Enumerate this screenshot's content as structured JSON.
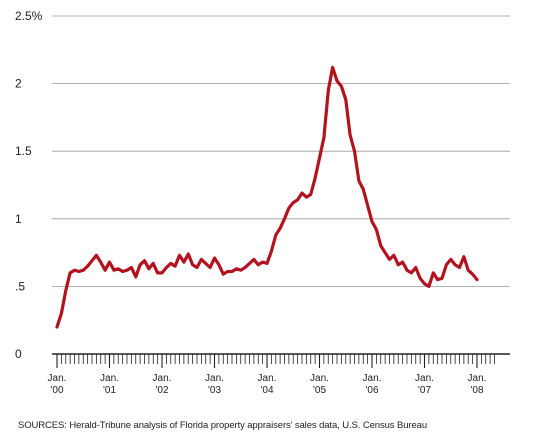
{
  "chart_data": {
    "type": "line",
    "title": "",
    "xlabel": "",
    "ylabel": "",
    "ylim": [
      0,
      2.5
    ],
    "yticks": [
      {
        "value": 0,
        "label": "0"
      },
      {
        "value": 0.5,
        "label": ".5"
      },
      {
        "value": 1,
        "label": "1"
      },
      {
        "value": 1.5,
        "label": "1.5"
      },
      {
        "value": 2,
        "label": "2"
      },
      {
        "value": 2.5,
        "label": "2.5%"
      }
    ],
    "xticks": [
      {
        "value": 2000,
        "line1": "Jan.",
        "line2": "'00"
      },
      {
        "value": 2001,
        "line1": "Jan.",
        "line2": "'01"
      },
      {
        "value": 2002,
        "line1": "Jan.",
        "line2": "'02"
      },
      {
        "value": 2003,
        "line1": "Jan.",
        "line2": "'03"
      },
      {
        "value": 2004,
        "line1": "Jan.",
        "line2": "'04"
      },
      {
        "value": 2005,
        "line1": "Jan.",
        "line2": "'05"
      },
      {
        "value": 2006,
        "line1": "Jan.",
        "line2": "'06"
      },
      {
        "value": 2007,
        "line1": "Jan.",
        "line2": "'07"
      },
      {
        "value": 2008,
        "line1": "Jan.",
        "line2": "'08"
      }
    ],
    "grid": "horizontal",
    "series": [
      {
        "color": "#b3121f",
        "start": "Jan. 2000",
        "frequency": "monthly",
        "values": [
          0.2,
          0.3,
          0.47,
          0.6,
          0.62,
          0.61,
          0.62,
          0.65,
          0.69,
          0.73,
          0.68,
          0.62,
          0.68,
          0.62,
          0.63,
          0.61,
          0.62,
          0.64,
          0.57,
          0.66,
          0.69,
          0.63,
          0.67,
          0.6,
          0.6,
          0.64,
          0.67,
          0.65,
          0.73,
          0.68,
          0.74,
          0.66,
          0.64,
          0.7,
          0.67,
          0.64,
          0.71,
          0.66,
          0.59,
          0.61,
          0.61,
          0.63,
          0.62,
          0.64,
          0.67,
          0.7,
          0.66,
          0.68,
          0.67,
          0.76,
          0.88,
          0.93,
          1.0,
          1.08,
          1.12,
          1.14,
          1.19,
          1.16,
          1.18,
          1.3,
          1.45,
          1.6,
          1.95,
          2.12,
          2.02,
          1.98,
          1.88,
          1.62,
          1.5,
          1.28,
          1.22,
          1.1,
          0.98,
          0.92,
          0.8,
          0.75,
          0.7,
          0.73,
          0.66,
          0.68,
          0.62,
          0.6,
          0.64,
          0.56,
          0.52,
          0.5,
          0.6,
          0.55,
          0.56,
          0.66,
          0.7,
          0.66,
          0.64,
          0.72,
          0.62,
          0.59,
          0.55
        ]
      }
    ]
  },
  "source_note": "SOURCES: Herald-Tribune analysis of Florida property appraisers’ sales data, U.S. Census Bureau"
}
